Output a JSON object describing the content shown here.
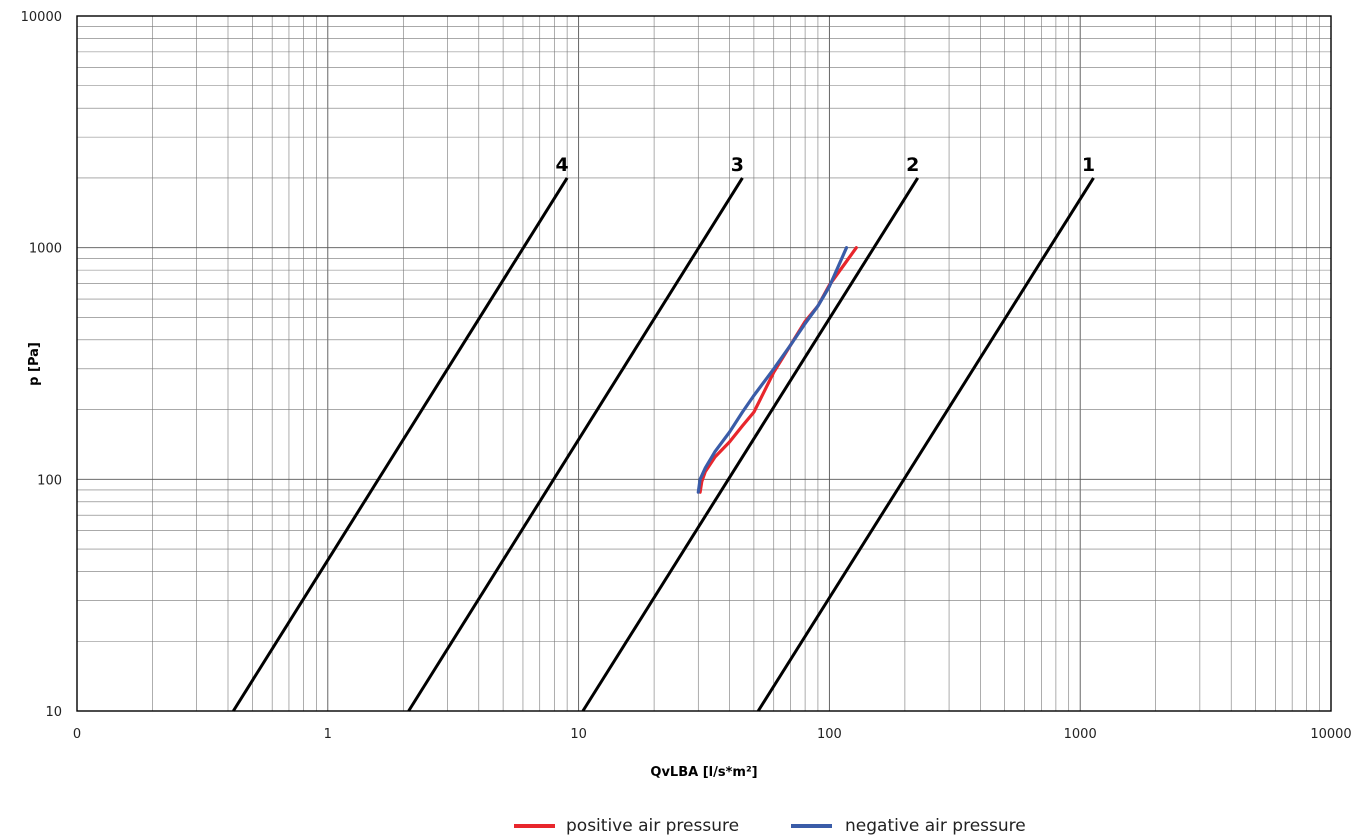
{
  "chart_data": {
    "type": "line",
    "xscale": "log",
    "yscale": "log",
    "xlabel": "QvLBA [l/s*m²]",
    "ylabel": "p [Pa]",
    "xlim": [
      0.1,
      10000
    ],
    "ylim": [
      10,
      10000
    ],
    "grid": true,
    "x_tick_labels": [
      "0",
      "1",
      "10",
      "100",
      "1000",
      "10000"
    ],
    "y_tick_labels": [
      "10",
      "100",
      "1000",
      "10000"
    ],
    "class_lines": [
      {
        "name": "1",
        "x": [
          52,
          1130
        ],
        "y": [
          10,
          2000
        ]
      },
      {
        "name": "2",
        "x": [
          10.4,
          225
        ],
        "y": [
          10,
          2000
        ]
      },
      {
        "name": "3",
        "x": [
          2.1,
          45
        ],
        "y": [
          10,
          2000
        ]
      },
      {
        "name": "4",
        "x": [
          0.42,
          9.0
        ],
        "y": [
          10,
          2000
        ]
      }
    ],
    "series": [
      {
        "name": "positive air pressure",
        "color": "#e8262c",
        "x": [
          30.5,
          31,
          32,
          35,
          40,
          45,
          50,
          55,
          60,
          70,
          80,
          90,
          100,
          115,
          128
        ],
        "y": [
          88,
          98,
          108,
          125,
          145,
          170,
          195,
          240,
          290,
          380,
          480,
          560,
          690,
          850,
          1000
        ]
      },
      {
        "name": "negative air pressure",
        "color": "#3a5ca8",
        "x": [
          30,
          30.5,
          32,
          35,
          40,
          45,
          50,
          60,
          70,
          80,
          90,
          100,
          117
        ],
        "y": [
          88,
          100,
          112,
          132,
          160,
          195,
          230,
          300,
          380,
          470,
          560,
          680,
          1000
        ]
      }
    ],
    "legend": {
      "position": "bottom-center",
      "entries": [
        {
          "label": "positive air pressure",
          "color": "#e8262c"
        },
        {
          "label": "negative air pressure",
          "color": "#3a5ca8"
        }
      ]
    }
  }
}
